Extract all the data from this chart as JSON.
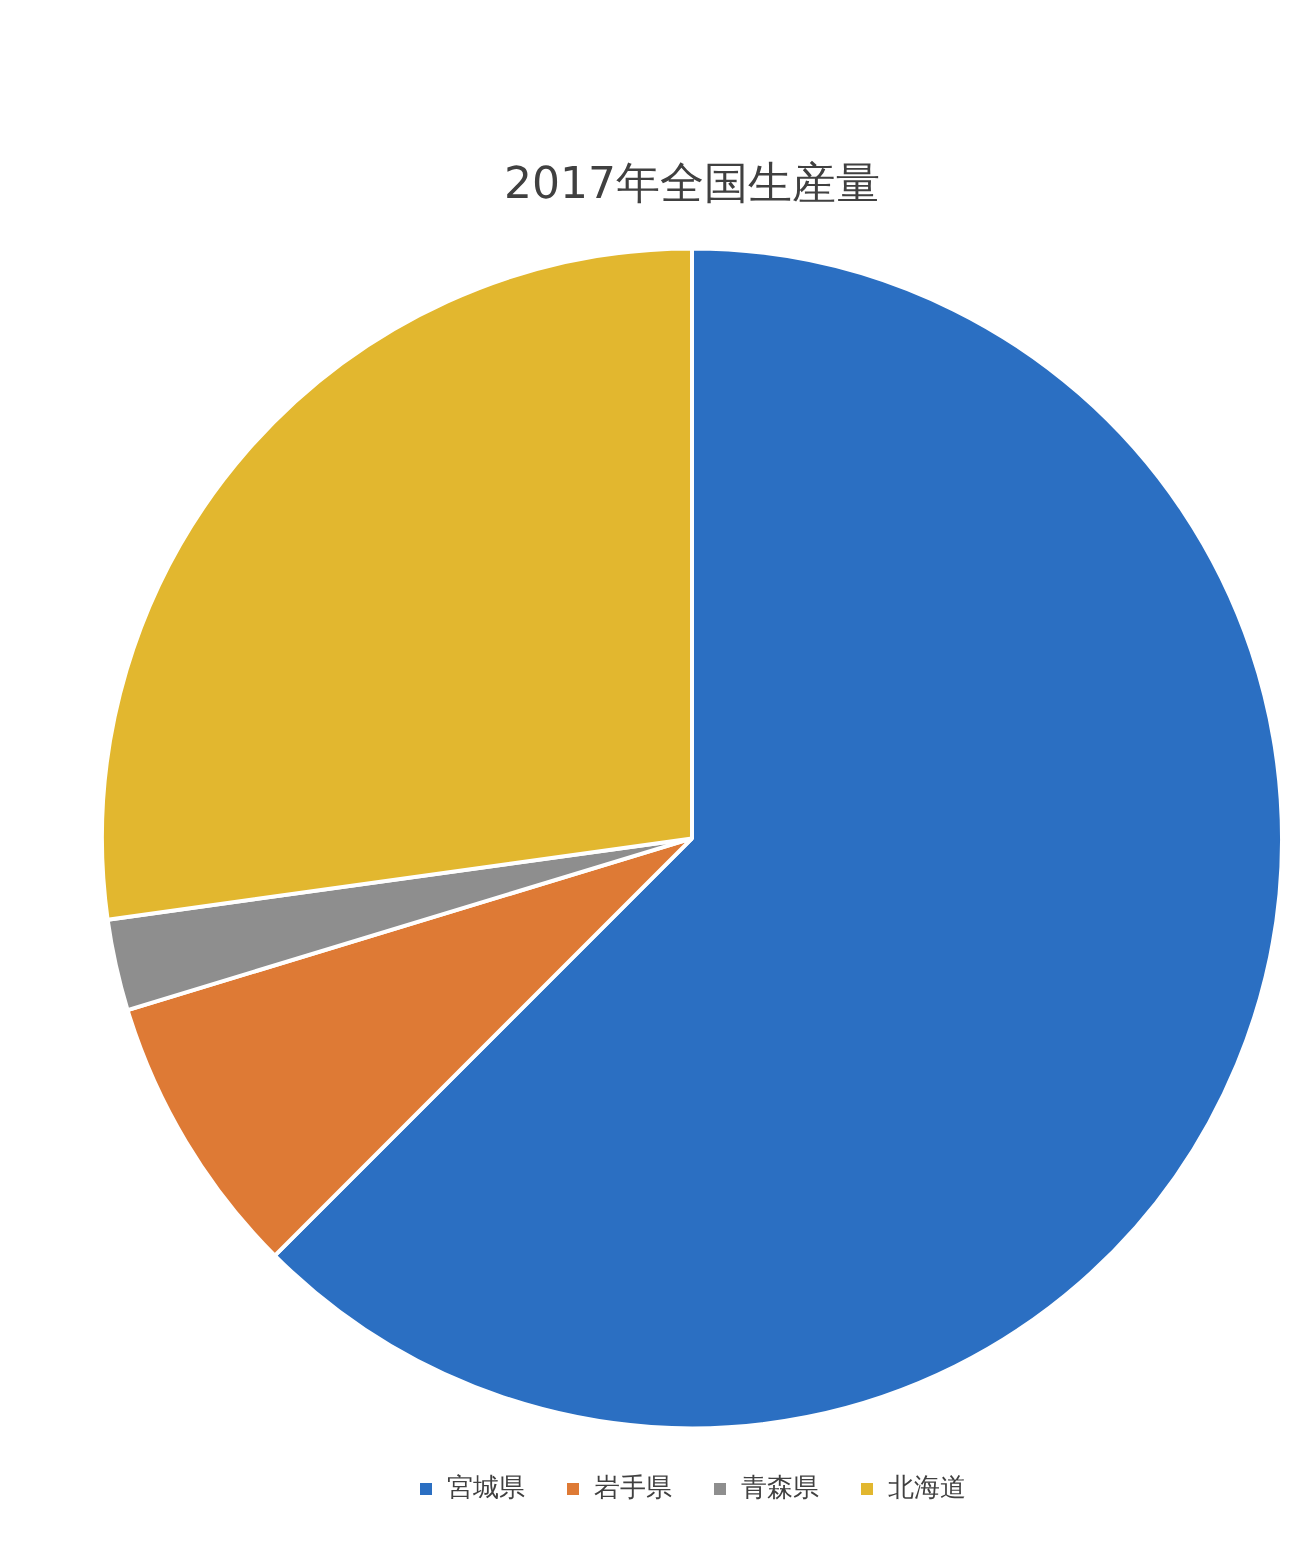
{
  "chart_data": {
    "type": "pie",
    "title": "2017年全国生産量",
    "categories": [
      "宮城県",
      "岩手県",
      "青森県",
      "北海道"
    ],
    "values": [
      62.5,
      7.8,
      2.5,
      27.2
    ],
    "colors": [
      "#2b6fc2",
      "#de7a35",
      "#8e8e8e",
      "#e2b72f"
    ],
    "legend": "bottom"
  }
}
